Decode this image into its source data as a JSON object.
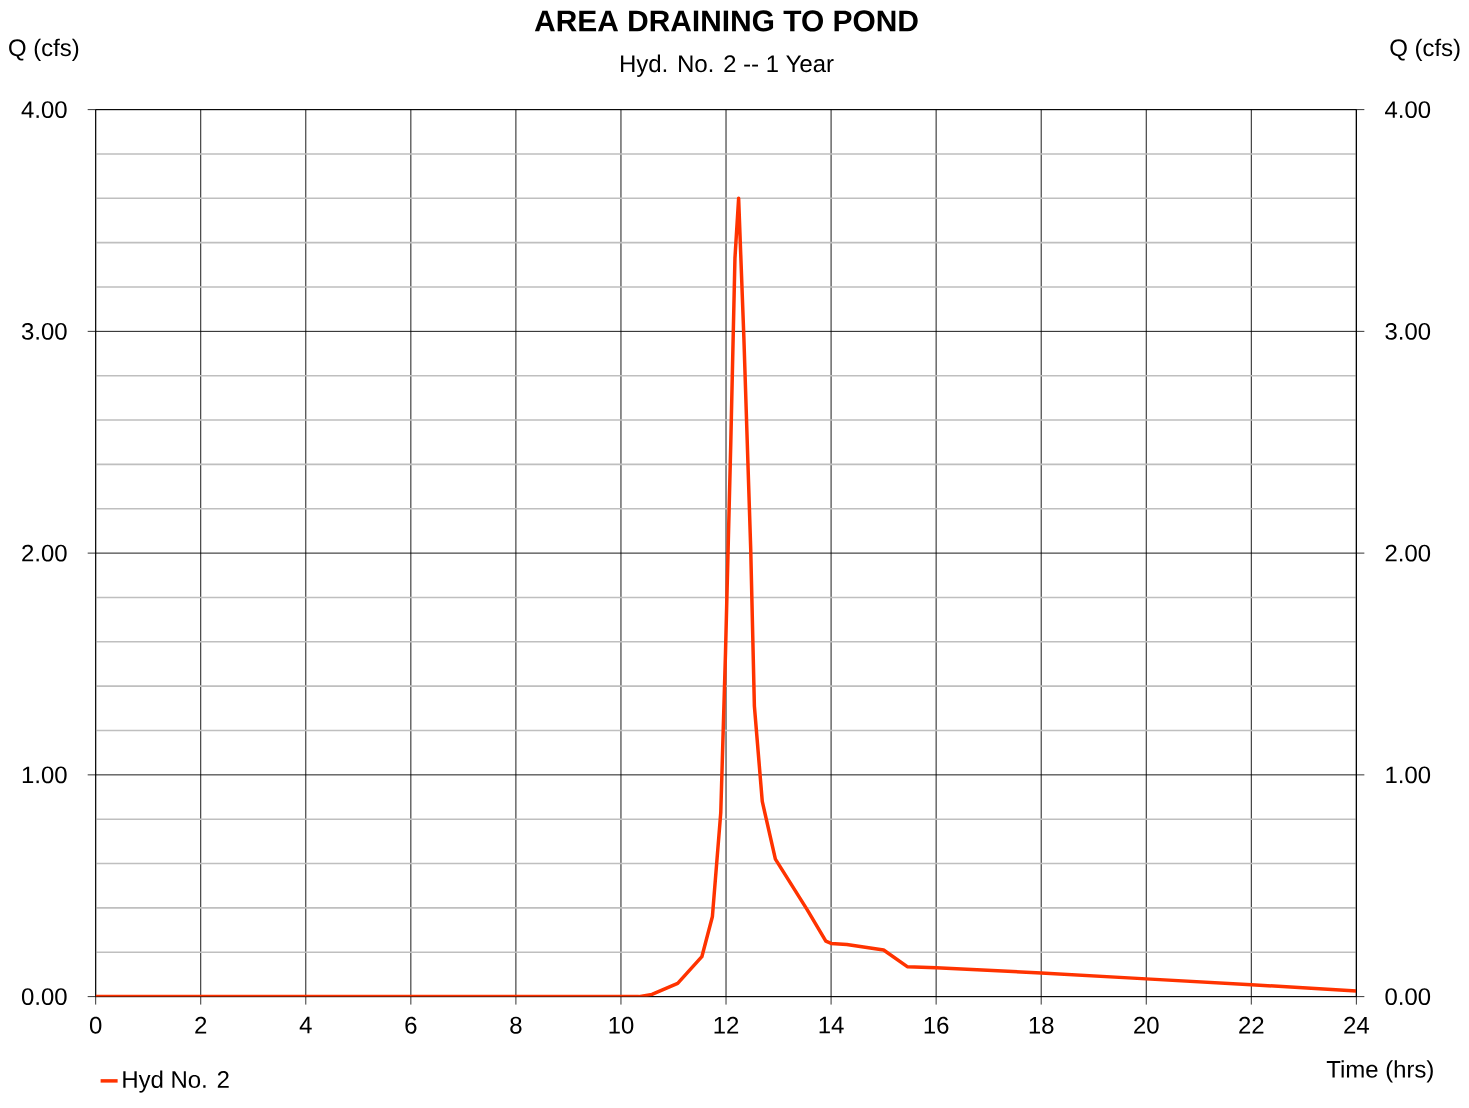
{
  "chart_data": {
    "type": "line",
    "title": "AREA DRAINING TO POND",
    "subtitle": "Hyd. No. 2 -- 1 Year",
    "xlabel": "Time (hrs)",
    "ylabel": "Q (cfs)",
    "y2label": "Q (cfs)",
    "series": [
      {
        "name": "Hyd No. 2",
        "color": "#ff3300",
        "x": [
          0,
          10.34,
          10.59,
          11.08,
          11.54,
          11.74,
          11.9,
          11.99,
          12.09,
          12.17,
          12.24,
          12.34,
          12.47,
          12.54,
          12.69,
          12.94,
          13.55,
          13.9,
          14.0,
          14.3,
          15.0,
          15.45,
          16.0,
          18.0,
          20.0,
          22.0,
          24.0
        ],
        "values": [
          0,
          0,
          0.01,
          0.06,
          0.18,
          0.36,
          0.83,
          1.55,
          2.49,
          3.33,
          3.6,
          2.97,
          2.02,
          1.31,
          0.88,
          0.62,
          0.39,
          0.25,
          0.24,
          0.235,
          0.21,
          0.135,
          0.13,
          0.107,
          0.08,
          0.054,
          0.025
        ]
      }
    ],
    "xlim": [
      0,
      24
    ],
    "xticks": [
      0,
      2,
      4,
      6,
      8,
      10,
      12,
      14,
      16,
      18,
      20,
      22,
      24
    ],
    "ylim": [
      0,
      4
    ],
    "yticks": [
      {
        "value": 0,
        "label": "0.00"
      },
      {
        "value": 0.2,
        "label": null
      },
      {
        "value": 0.4,
        "label": null
      },
      {
        "value": 0.6,
        "label": null
      },
      {
        "value": 0.8,
        "label": null
      },
      {
        "value": 1,
        "label": "1.00"
      },
      {
        "value": 1.2,
        "label": null
      },
      {
        "value": 1.4,
        "label": null
      },
      {
        "value": 1.6,
        "label": null
      },
      {
        "value": 1.8,
        "label": null
      },
      {
        "value": 2,
        "label": "2.00"
      },
      {
        "value": 2.2,
        "label": null
      },
      {
        "value": 2.4,
        "label": null
      },
      {
        "value": 2.6,
        "label": null
      },
      {
        "value": 2.8,
        "label": null
      },
      {
        "value": 3,
        "label": "3.00"
      },
      {
        "value": 3.2,
        "label": null
      },
      {
        "value": 3.4,
        "label": null
      },
      {
        "value": 3.6,
        "label": null
      },
      {
        "value": 3.8,
        "label": null
      },
      {
        "value": 4,
        "label": "4.00"
      }
    ],
    "y2lim": [
      0,
      4
    ],
    "y2ticks": [
      {
        "value": 0,
        "label": "0.00"
      },
      {
        "value": 1,
        "label": "1.00"
      },
      {
        "value": 2,
        "label": "2.00"
      },
      {
        "value": 3,
        "label": "3.00"
      },
      {
        "value": 4,
        "label": "4.00"
      }
    ],
    "grid": true,
    "legend": "bottom left",
    "marker": "none",
    "line_style": "solid"
  }
}
